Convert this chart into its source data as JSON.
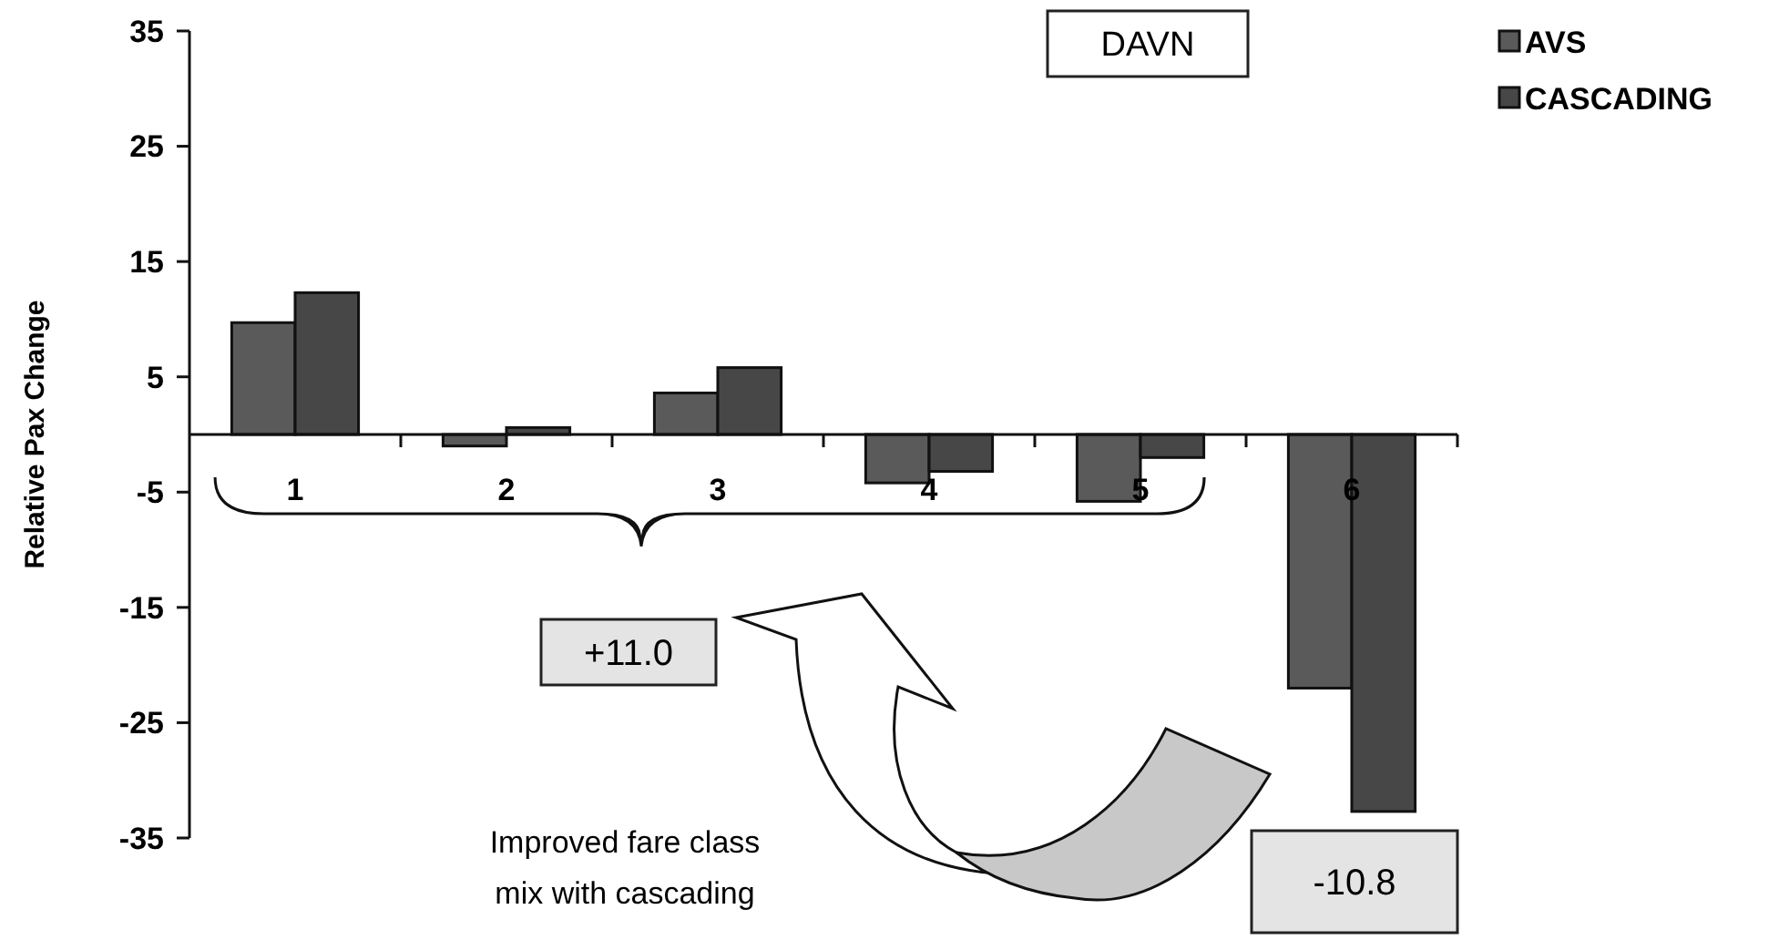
{
  "chart_data": {
    "type": "bar",
    "title": "DAVN",
    "ylabel": "Relative Pax Change",
    "categories": [
      "1",
      "2",
      "3",
      "4",
      "5",
      "6"
    ],
    "series": [
      {
        "name": "AVS",
        "color": "#5a5a5a",
        "values": [
          9.7,
          -1.0,
          3.6,
          -4.2,
          -5.8,
          -22.0
        ]
      },
      {
        "name": "CASCADING",
        "color": "#474747",
        "values": [
          12.3,
          0.6,
          5.8,
          -3.2,
          -2.0,
          -32.7
        ]
      }
    ],
    "ylim": [
      -35,
      35
    ],
    "yticks": [
      -35,
      -25,
      -15,
      -5,
      5,
      15,
      25,
      35
    ],
    "grid": false,
    "legend": "top right",
    "annotations": [
      "+11.0",
      "-10.8",
      "Improved fare class mix with cascading"
    ]
  }
}
